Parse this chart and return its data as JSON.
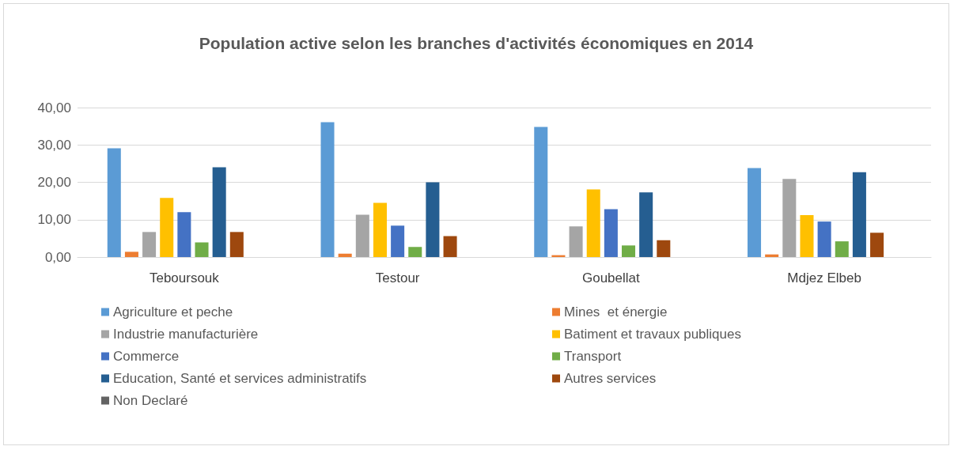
{
  "chart_data": {
    "type": "bar",
    "title": "Population active selon les branches d'activités économiques en 2014",
    "categories": [
      "Teboursouk",
      "Testour",
      "Goubellat",
      "Mdjez Elbeb"
    ],
    "series": [
      {
        "name": "Agriculture et peche",
        "color": "#5b9bd5",
        "values": [
          29.1,
          36.1,
          34.8,
          23.8
        ]
      },
      {
        "name": "Mines  et énergie",
        "color": "#ed7d31",
        "values": [
          1.4,
          0.9,
          0.5,
          0.7
        ]
      },
      {
        "name": "Industrie manufacturière",
        "color": "#a5a5a5",
        "values": [
          6.7,
          11.3,
          8.2,
          20.9
        ]
      },
      {
        "name": "Batiment et travaux publiques",
        "color": "#ffc000",
        "values": [
          15.8,
          14.5,
          18.1,
          11.2
        ]
      },
      {
        "name": "Commerce",
        "color": "#4472c4",
        "values": [
          12.0,
          8.4,
          12.8,
          9.5
        ]
      },
      {
        "name": "Transport",
        "color": "#70ad47",
        "values": [
          3.9,
          2.7,
          3.1,
          4.2
        ]
      },
      {
        "name": "Education, Santé et services administratifs",
        "color": "#255e91",
        "values": [
          24.0,
          20.0,
          17.3,
          22.7
        ]
      },
      {
        "name": "Autres services",
        "color": "#9e480e",
        "values": [
          6.7,
          5.6,
          4.5,
          6.5
        ]
      },
      {
        "name": "Non Declaré",
        "color": "#636363",
        "values": [
          0,
          0,
          0,
          0
        ]
      }
    ],
    "ylim": [
      0,
      40
    ],
    "yticks": [
      {
        "value": 0,
        "label": "0,00"
      },
      {
        "value": 10,
        "label": "10,00"
      },
      {
        "value": 20,
        "label": "20,00"
      },
      {
        "value": 30,
        "label": "30,00"
      },
      {
        "value": 40,
        "label": "40,00"
      }
    ],
    "grid": "y",
    "legend": "bottom"
  }
}
